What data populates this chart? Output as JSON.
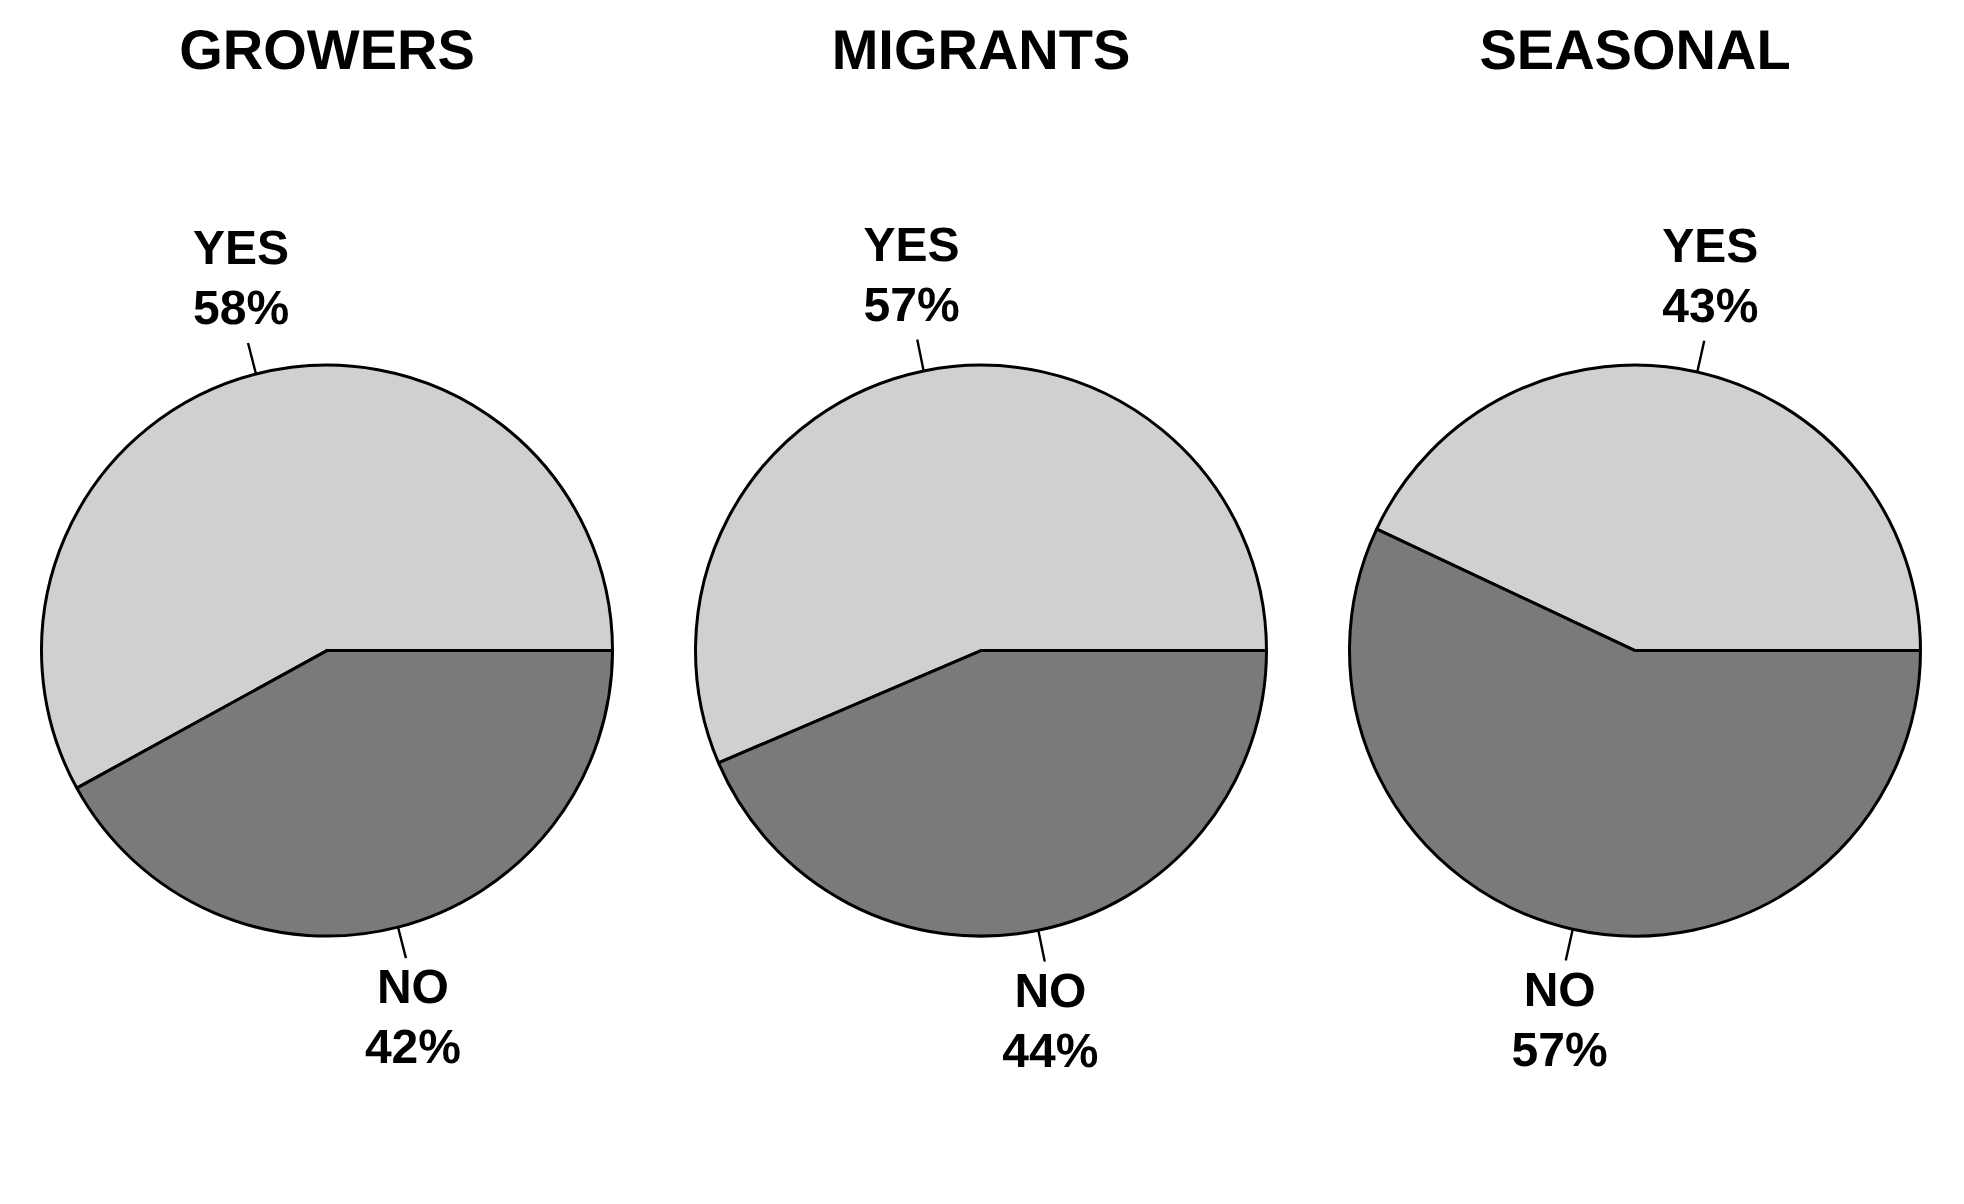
{
  "chart_data": [
    {
      "type": "pie",
      "title": "GROWERS",
      "categories": [
        "YES",
        "NO"
      ],
      "values": [
        58,
        42
      ],
      "value_labels": [
        "58%",
        "42%"
      ],
      "colors": [
        "#d0d0d0",
        "#7a7a7a"
      ]
    },
    {
      "type": "pie",
      "title": "MIGRANTS",
      "categories": [
        "YES",
        "NO"
      ],
      "values": [
        57,
        44
      ],
      "value_labels": [
        "57%",
        "44%"
      ],
      "colors": [
        "#d0d0d0",
        "#7a7a7a"
      ]
    },
    {
      "type": "pie",
      "title": "SEASONAL",
      "categories": [
        "YES",
        "NO"
      ],
      "values": [
        43,
        57
      ],
      "value_labels": [
        "43%",
        "57%"
      ],
      "colors": [
        "#d0d0d0",
        "#7a7a7a"
      ]
    }
  ]
}
